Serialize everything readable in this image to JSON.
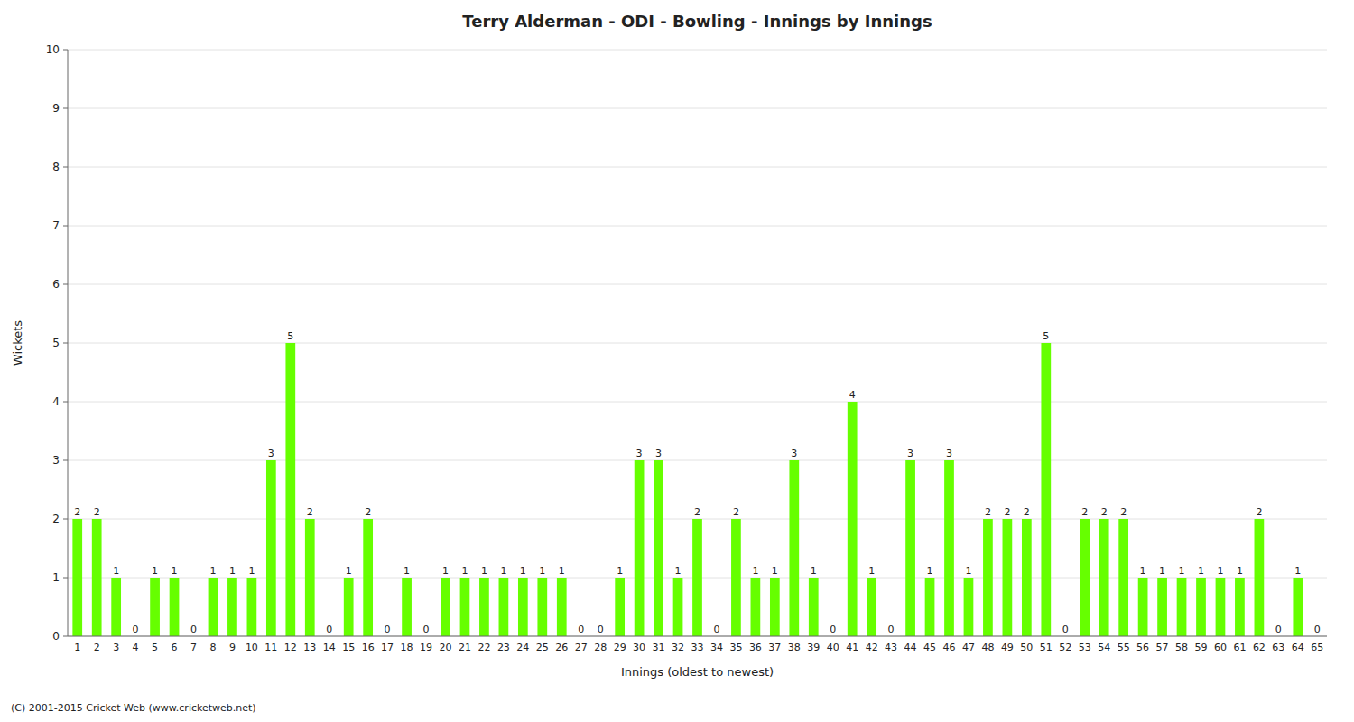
{
  "chart_data": {
    "type": "bar",
    "title": "Terry Alderman - ODI - Bowling - Innings by Innings",
    "x_label": "Innings (oldest to newest)",
    "y_label": "Wickets",
    "footer": "(C) 2001-2015 Cricket Web (www.cricketweb.net)",
    "categories": [
      "1",
      "2",
      "3",
      "4",
      "5",
      "6",
      "7",
      "8",
      "9",
      "10",
      "11",
      "12",
      "13",
      "14",
      "15",
      "16",
      "17",
      "18",
      "19",
      "20",
      "21",
      "22",
      "23",
      "24",
      "25",
      "26",
      "27",
      "28",
      "29",
      "30",
      "31",
      "32",
      "33",
      "34",
      "35",
      "36",
      "37",
      "38",
      "39",
      "40",
      "41",
      "42",
      "43",
      "44",
      "45",
      "46",
      "47",
      "48",
      "49",
      "50",
      "51",
      "52",
      "53",
      "54",
      "55",
      "56",
      "57",
      "58",
      "59",
      "60",
      "61",
      "62",
      "63",
      "64",
      "65"
    ],
    "values": [
      2,
      2,
      1,
      0,
      1,
      1,
      0,
      1,
      1,
      1,
      3,
      5,
      2,
      0,
      1,
      2,
      0,
      1,
      0,
      1,
      1,
      1,
      1,
      1,
      1,
      1,
      0,
      0,
      1,
      3,
      3,
      1,
      2,
      0,
      2,
      1,
      1,
      3,
      1,
      0,
      4,
      1,
      0,
      3,
      1,
      3,
      1,
      2,
      2,
      2,
      5,
      0,
      2,
      2,
      2,
      1,
      1,
      1,
      1,
      1,
      1,
      2,
      0,
      1,
      0
    ],
    "color": "#66ff00",
    "ylim": [
      0,
      10
    ],
    "yticks": [
      0,
      1,
      2,
      3,
      4,
      5,
      6,
      7,
      8,
      9,
      10
    ],
    "grid": true,
    "data_labels": true
  }
}
